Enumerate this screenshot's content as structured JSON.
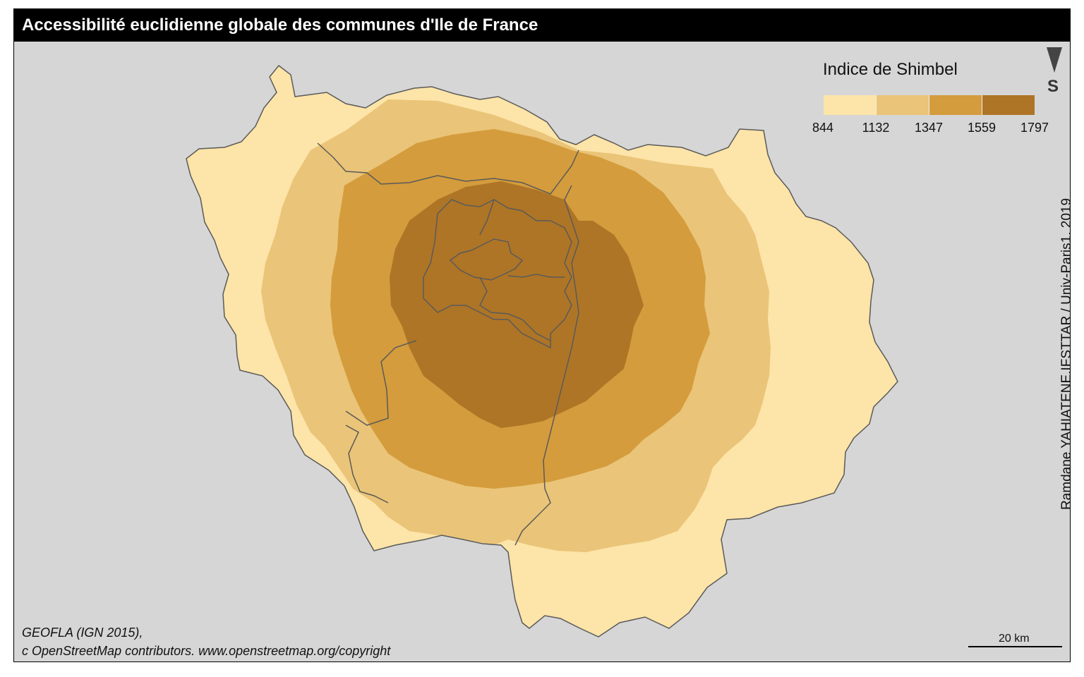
{
  "title": "Accessibilité euclidienne globale des communes d'Ile de France",
  "legend": {
    "title": "Indice de Shimbel",
    "breaks": [
      "844",
      "1132",
      "1347",
      "1559",
      "1797"
    ],
    "colors": [
      "#fde4a8",
      "#eac478",
      "#d49c3c",
      "#ae7526"
    ]
  },
  "north_arrow": {
    "letter": "S",
    "icon": "north-arrow-icon"
  },
  "credit": "Ramdane YAHIATENE,IFSTTAR / Univ-Paris1, 2019",
  "source": {
    "line1": "GEOFLA (IGN 2015),",
    "line2": "c OpenStreetMap contributors. www.openstreetmap.org/copyright"
  },
  "scale": {
    "label": "20 km"
  },
  "colors": {
    "background": "#d6d6d6",
    "title_bar": "#000000",
    "boundary": "#5a5a5a"
  }
}
